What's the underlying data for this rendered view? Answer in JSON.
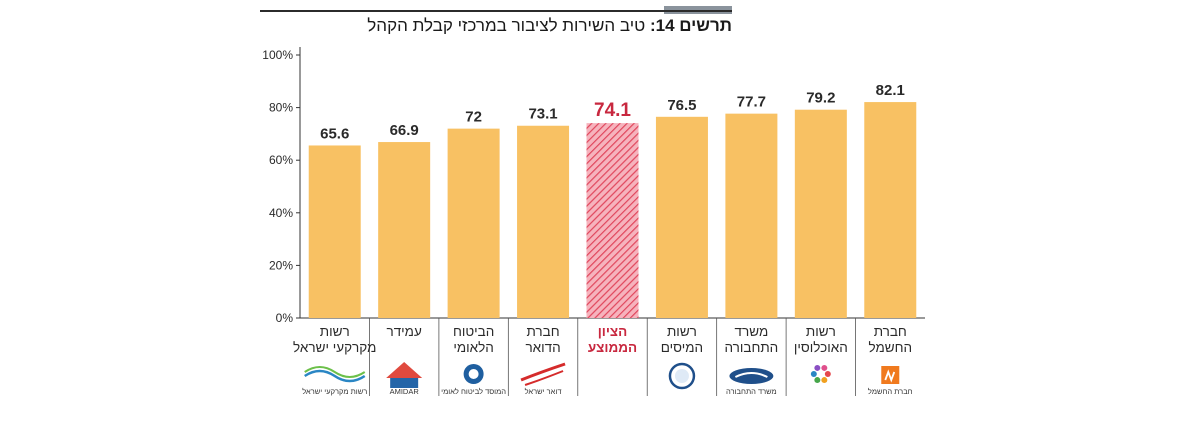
{
  "title_label": "תרשים 14:",
  "title_text": "טיב השירות לציבור במרכזי קבלת הקהל",
  "chart_data": {
    "type": "bar",
    "title": "תרשים 14: טיב השירות לציבור במרכזי קבלת הקהל",
    "xlabel": "",
    "ylabel": "",
    "ylim": [
      0,
      100
    ],
    "yticks": [
      "0%",
      "20%",
      "40%",
      "60%",
      "80%",
      "100%"
    ],
    "categories": [
      [
        "רשות",
        "מקרקעי ישראל"
      ],
      [
        "עמידר"
      ],
      [
        "הביטוח",
        "הלאומי"
      ],
      [
        "חברת",
        "הדואר"
      ],
      [
        "הציון",
        "הממוצע"
      ],
      [
        "רשות",
        "המיסים"
      ],
      [
        "משרד",
        "התחבורה"
      ],
      [
        "רשות",
        "האוכלוסין"
      ],
      [
        "חברת",
        "החשמל"
      ]
    ],
    "values": [
      65.6,
      66.9,
      72,
      73.1,
      74.1,
      76.5,
      77.7,
      79.2,
      82.1
    ],
    "value_labels": [
      "65.6",
      "66.9",
      "72",
      "73.1",
      "74.1",
      "76.5",
      "77.7",
      "79.2",
      "82.1"
    ],
    "highlight_index": 4,
    "logos": [
      {
        "icon": "israel-land-authority-logo",
        "caption": "רשות מקרקעי ישראל"
      },
      {
        "icon": "amidar-logo",
        "caption": "AMIDAR"
      },
      {
        "icon": "national-insurance-logo",
        "caption": "המוסד לביטוח לאומי"
      },
      {
        "icon": "israel-post-logo",
        "caption": "דואר ישראל"
      },
      {
        "icon": "",
        "caption": ""
      },
      {
        "icon": "tax-authority-logo",
        "caption": ""
      },
      {
        "icon": "ministry-of-transport-logo",
        "caption": "משרד התחבורה"
      },
      {
        "icon": "population-authority-logo",
        "caption": ""
      },
      {
        "icon": "electric-company-logo",
        "caption": "חברת החשמל"
      }
    ],
    "colors": {
      "bar": "#F8C163",
      "highlight": "#E8556A",
      "highlight_text": "#C8283F",
      "text": "#2a2a2a",
      "axis": "#333333"
    },
    "grid": false
  }
}
